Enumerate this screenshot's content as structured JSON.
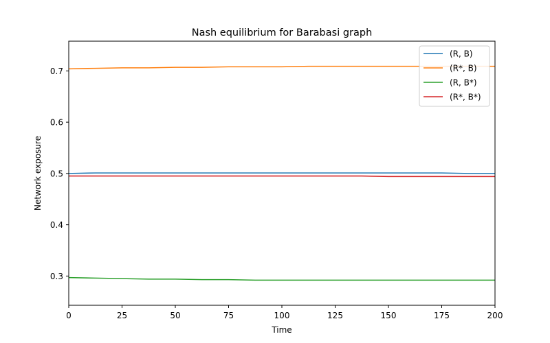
{
  "chart_data": {
    "type": "line",
    "title": "Nash equilibrium for Barabasi graph",
    "xlabel": "Time",
    "ylabel": "Network exposure",
    "xlim": [
      0,
      200
    ],
    "ylim": [
      0.243,
      0.758
    ],
    "xticks": [
      0,
      25,
      50,
      75,
      100,
      125,
      150,
      175,
      200
    ],
    "yticks": [
      0.3,
      0.4,
      0.5,
      0.6,
      0.7
    ],
    "grid": false,
    "legend_position": "top-right",
    "x": [
      0,
      12.5,
      25,
      37.5,
      50,
      62.5,
      75,
      87.5,
      100,
      112.5,
      125,
      137.5,
      150,
      162.5,
      175,
      187.5,
      200
    ],
    "series": [
      {
        "name": "(R, B)",
        "color": "#1f77b4",
        "values": [
          0.5,
          0.501,
          0.501,
          0.501,
          0.501,
          0.501,
          0.501,
          0.501,
          0.501,
          0.501,
          0.501,
          0.501,
          0.501,
          0.501,
          0.501,
          0.5,
          0.5
        ]
      },
      {
        "name": "(R*, B)",
        "color": "#ff7f0e",
        "values": [
          0.704,
          0.705,
          0.706,
          0.706,
          0.707,
          0.707,
          0.708,
          0.708,
          0.708,
          0.709,
          0.709,
          0.709,
          0.709,
          0.709,
          0.709,
          0.709,
          0.709
        ]
      },
      {
        "name": "(R, B*)",
        "color": "#2ca02c",
        "values": [
          0.297,
          0.296,
          0.295,
          0.294,
          0.294,
          0.293,
          0.293,
          0.292,
          0.292,
          0.292,
          0.292,
          0.292,
          0.292,
          0.292,
          0.292,
          0.292,
          0.292
        ]
      },
      {
        "name": "(R*, B*)",
        "color": "#d62728",
        "values": [
          0.495,
          0.495,
          0.495,
          0.495,
          0.495,
          0.495,
          0.495,
          0.495,
          0.495,
          0.495,
          0.495,
          0.495,
          0.494,
          0.494,
          0.494,
          0.494,
          0.494
        ]
      }
    ]
  }
}
